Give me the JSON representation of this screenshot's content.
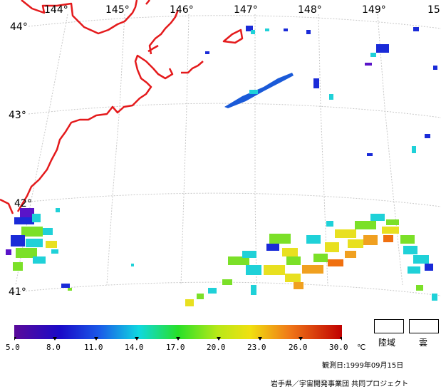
{
  "map": {
    "lon_labels": [
      "144°",
      "145°",
      "146°",
      "147°",
      "148°",
      "149°",
      "15"
    ],
    "lat_labels": [
      "44°",
      "43°",
      "42°",
      "41°"
    ]
  },
  "scale": {
    "ticks": [
      "5.0",
      "8.0",
      "11.0",
      "14.0",
      "17.0",
      "20.0",
      "23.0",
      "26.0",
      "30.0"
    ],
    "unit": "℃"
  },
  "legend": {
    "land_label": "陸域",
    "cloud_label": "雲"
  },
  "footer": {
    "observation_date": "観測日:1999年09月15日",
    "credit": "岩手県／宇宙開発事業団 共同プロジェクト"
  },
  "colors": {
    "coastline": "#e41a1c",
    "grid": "#c8c8c8"
  }
}
